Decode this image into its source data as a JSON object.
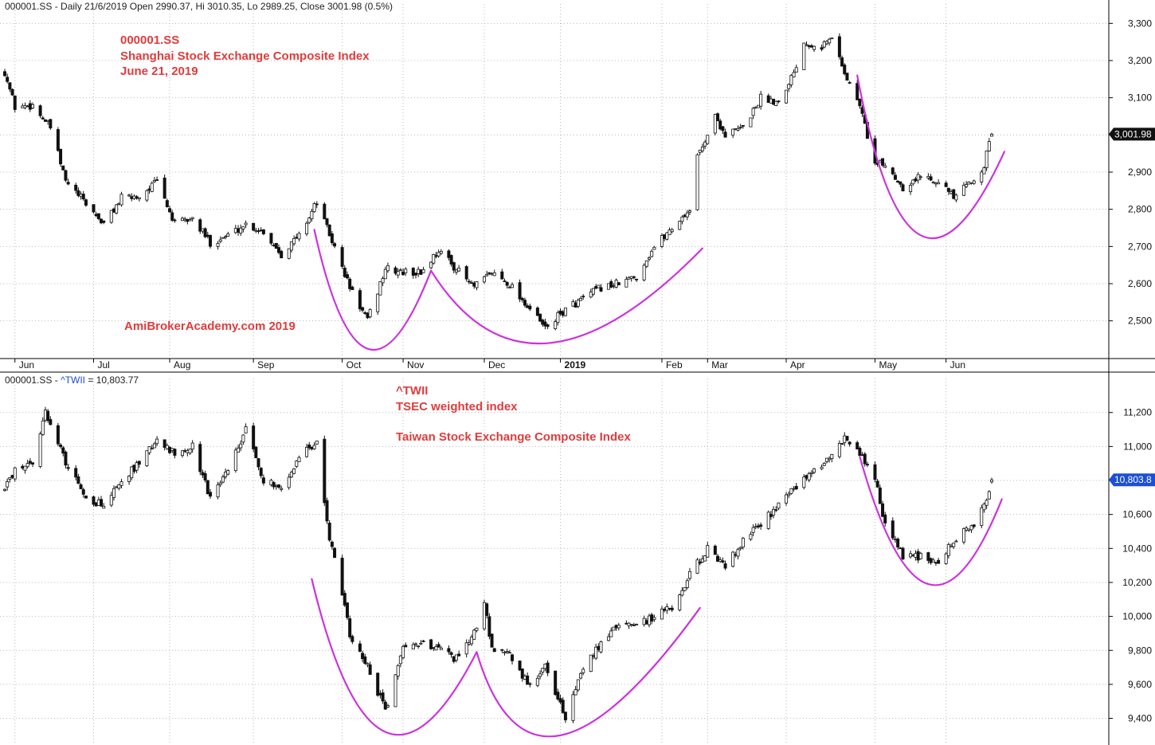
{
  "colors": {
    "annotation": "#e03c3c",
    "arc": "#cc33dd",
    "candle": "#111111",
    "watermark": "#e03c3c",
    "tag_top": "#111111",
    "tag_bottom": "#1a4fd6",
    "series_label_bottom": "#1a4fd6"
  },
  "top_panel": {
    "header": "000001.SS - Daily 21/6/2019 Open 2990.37, Hi 3010.35, Lo 2989.25, Close 3001.98 (0.5%)",
    "annotation_lines": [
      "000001.SS",
      "Shanghai Stock Exchange Composite Index",
      "June 21, 2019"
    ],
    "watermark": "AmiBrokerAcademy.com  2019",
    "last_value_tag": "3,001.98"
  },
  "bottom_panel": {
    "header_prefix": "000001.SS - ",
    "header_series": "^TWII",
    "header_value": " = 10,803.77",
    "annotation_lines": [
      "^TWII",
      "TSEC weighted index",
      "",
      "Taiwan Stock Exchange Composite Index"
    ],
    "last_value_tag": "10,803.8"
  },
  "x_axis_labels": [
    "Jun",
    "Jul",
    "Aug",
    "Sep",
    "Oct",
    "Nov",
    "Dec",
    "2019",
    "Feb",
    "Mar",
    "Apr",
    "May",
    "Jun"
  ],
  "chart_data": [
    {
      "type": "candlestick",
      "name": "000001.SS",
      "period": "2018-05 to 2019-06-21 (daily)",
      "ylim": [
        2420,
        3320
      ],
      "yticks": [
        2500,
        2600,
        2700,
        2800,
        2900,
        3000,
        3100,
        3200,
        3300
      ],
      "ytick_labels": [
        "2,500",
        "2,600",
        "2,700",
        "2,800",
        "2,900",
        "3,000",
        "3,100",
        "3,200",
        "3,300"
      ],
      "last_close": 3001.98,
      "close_anchors": [
        {
          "x": "2018-05-28",
          "y": 3170
        },
        {
          "x": "2018-06-01",
          "y": 3075
        },
        {
          "x": "2018-06-08",
          "y": 3080
        },
        {
          "x": "2018-06-15",
          "y": 3020
        },
        {
          "x": "2018-06-21",
          "y": 2875
        },
        {
          "x": "2018-06-29",
          "y": 2815
        },
        {
          "x": "2018-07-06",
          "y": 2760
        },
        {
          "x": "2018-07-13",
          "y": 2830
        },
        {
          "x": "2018-07-20",
          "y": 2835
        },
        {
          "x": "2018-07-27",
          "y": 2875
        },
        {
          "x": "2018-08-03",
          "y": 2760
        },
        {
          "x": "2018-08-10",
          "y": 2775
        },
        {
          "x": "2018-08-17",
          "y": 2710
        },
        {
          "x": "2018-08-24",
          "y": 2730
        },
        {
          "x": "2018-08-31",
          "y": 2760
        },
        {
          "x": "2018-09-07",
          "y": 2740
        },
        {
          "x": "2018-09-14",
          "y": 2680
        },
        {
          "x": "2018-09-21",
          "y": 2730
        },
        {
          "x": "2018-09-28",
          "y": 2820
        },
        {
          "x": "2018-10-11",
          "y": 2590
        },
        {
          "x": "2018-10-18",
          "y": 2500
        },
        {
          "x": "2018-10-25",
          "y": 2640
        },
        {
          "x": "2018-11-01",
          "y": 2630
        },
        {
          "x": "2018-11-08",
          "y": 2630
        },
        {
          "x": "2018-11-15",
          "y": 2690
        },
        {
          "x": "2018-11-22",
          "y": 2640
        },
        {
          "x": "2018-11-29",
          "y": 2590
        },
        {
          "x": "2018-12-06",
          "y": 2630
        },
        {
          "x": "2018-12-13",
          "y": 2600
        },
        {
          "x": "2018-12-20",
          "y": 2540
        },
        {
          "x": "2018-12-27",
          "y": 2480
        },
        {
          "x": "2019-01-04",
          "y": 2530
        },
        {
          "x": "2019-01-11",
          "y": 2560
        },
        {
          "x": "2019-01-18",
          "y": 2590
        },
        {
          "x": "2019-01-25",
          "y": 2600
        },
        {
          "x": "2019-02-01",
          "y": 2620
        },
        {
          "x": "2019-02-08",
          "y": 2700
        },
        {
          "x": "2019-02-15",
          "y": 2750
        },
        {
          "x": "2019-02-22",
          "y": 2800
        },
        {
          "x": "2019-02-25",
          "y": 2940
        },
        {
          "x": "2019-03-04",
          "y": 3050
        },
        {
          "x": "2019-03-08",
          "y": 3000
        },
        {
          "x": "2019-03-15",
          "y": 3020
        },
        {
          "x": "2019-03-22",
          "y": 3100
        },
        {
          "x": "2019-03-29",
          "y": 3090
        },
        {
          "x": "2019-04-04",
          "y": 3170
        },
        {
          "x": "2019-04-08",
          "y": 3250
        },
        {
          "x": "2019-04-15",
          "y": 3240
        },
        {
          "x": "2019-04-19",
          "y": 3260
        },
        {
          "x": "2019-04-22",
          "y": 3210
        },
        {
          "x": "2019-04-25",
          "y": 3150
        },
        {
          "x": "2019-04-30",
          "y": 3080
        },
        {
          "x": "2019-05-06",
          "y": 2920
        },
        {
          "x": "2019-05-10",
          "y": 2920
        },
        {
          "x": "2019-05-17",
          "y": 2860
        },
        {
          "x": "2019-05-24",
          "y": 2890
        },
        {
          "x": "2019-05-31",
          "y": 2880
        },
        {
          "x": "2019-06-06",
          "y": 2830
        },
        {
          "x": "2019-06-14",
          "y": 2880
        },
        {
          "x": "2019-06-18",
          "y": 2920
        },
        {
          "x": "2019-06-21",
          "y": 3001.98
        }
      ],
      "arcs": [
        {
          "x": [
            "2018-09-27",
            "2018-10-18",
            "2018-11-12"
          ],
          "y": [
            2745,
            2425,
            2635
          ]
        },
        {
          "x": [
            "2018-11-12",
            "2018-12-28",
            "2019-02-27"
          ],
          "y": [
            2635,
            2440,
            2695
          ]
        },
        {
          "x": [
            "2019-04-29",
            "2019-05-24",
            "2019-06-26"
          ],
          "y": [
            3160,
            2730,
            2955
          ]
        }
      ]
    },
    {
      "type": "candlestick",
      "name": "^TWII",
      "period": "2018-05 to 2019-06-21 (daily)",
      "ylim": [
        9290,
        11330
      ],
      "yticks": [
        9400,
        9600,
        9800,
        10000,
        10200,
        10400,
        10600,
        10800,
        11000,
        11200
      ],
      "ytick_labels": [
        "9,400",
        "9,600",
        "9,800",
        "10,000",
        "10,200",
        "10,400",
        "10,600",
        "10,800",
        "11,000",
        "11,200"
      ],
      "last_close": 10803.77,
      "close_anchors": [
        {
          "x": "2018-05-28",
          "y": 10750
        },
        {
          "x": "2018-06-01",
          "y": 10860
        },
        {
          "x": "2018-06-08",
          "y": 10900
        },
        {
          "x": "2018-06-13",
          "y": 11200
        },
        {
          "x": "2018-06-21",
          "y": 10900
        },
        {
          "x": "2018-06-29",
          "y": 10700
        },
        {
          "x": "2018-07-06",
          "y": 10650
        },
        {
          "x": "2018-07-13",
          "y": 10800
        },
        {
          "x": "2018-07-20",
          "y": 10900
        },
        {
          "x": "2018-07-27",
          "y": 11050
        },
        {
          "x": "2018-08-03",
          "y": 10950
        },
        {
          "x": "2018-08-10",
          "y": 11000
        },
        {
          "x": "2018-08-17",
          "y": 10700
        },
        {
          "x": "2018-08-24",
          "y": 10850
        },
        {
          "x": "2018-08-31",
          "y": 11100
        },
        {
          "x": "2018-09-07",
          "y": 10800
        },
        {
          "x": "2018-09-14",
          "y": 10750
        },
        {
          "x": "2018-09-21",
          "y": 10950
        },
        {
          "x": "2018-09-28",
          "y": 11020
        },
        {
          "x": "2018-10-03",
          "y": 10470
        },
        {
          "x": "2018-10-11",
          "y": 9900
        },
        {
          "x": "2018-10-18",
          "y": 9700
        },
        {
          "x": "2018-10-25",
          "y": 9450
        },
        {
          "x": "2018-11-01",
          "y": 9800
        },
        {
          "x": "2018-11-08",
          "y": 9850
        },
        {
          "x": "2018-11-15",
          "y": 9800
        },
        {
          "x": "2018-11-22",
          "y": 9750
        },
        {
          "x": "2018-11-29",
          "y": 9900
        },
        {
          "x": "2018-12-03",
          "y": 10080
        },
        {
          "x": "2018-12-06",
          "y": 9800
        },
        {
          "x": "2018-12-13",
          "y": 9780
        },
        {
          "x": "2018-12-20",
          "y": 9600
        },
        {
          "x": "2018-12-27",
          "y": 9700
        },
        {
          "x": "2019-01-04",
          "y": 9400
        },
        {
          "x": "2019-01-11",
          "y": 9700
        },
        {
          "x": "2019-01-18",
          "y": 9850
        },
        {
          "x": "2019-01-25",
          "y": 9950
        },
        {
          "x": "2019-02-01",
          "y": 9950
        },
        {
          "x": "2019-02-15",
          "y": 10050
        },
        {
          "x": "2019-02-22",
          "y": 10250
        },
        {
          "x": "2019-03-01",
          "y": 10400
        },
        {
          "x": "2019-03-08",
          "y": 10300
        },
        {
          "x": "2019-03-15",
          "y": 10450
        },
        {
          "x": "2019-03-22",
          "y": 10550
        },
        {
          "x": "2019-03-29",
          "y": 10650
        },
        {
          "x": "2019-04-04",
          "y": 10750
        },
        {
          "x": "2019-04-12",
          "y": 10850
        },
        {
          "x": "2019-04-18",
          "y": 10950
        },
        {
          "x": "2019-04-24",
          "y": 11050
        },
        {
          "x": "2019-04-30",
          "y": 10950
        },
        {
          "x": "2019-05-06",
          "y": 10800
        },
        {
          "x": "2019-05-10",
          "y": 10550
        },
        {
          "x": "2019-05-17",
          "y": 10350
        },
        {
          "x": "2019-05-24",
          "y": 10350
        },
        {
          "x": "2019-05-31",
          "y": 10300
        },
        {
          "x": "2019-06-06",
          "y": 10450
        },
        {
          "x": "2019-06-14",
          "y": 10550
        },
        {
          "x": "2019-06-18",
          "y": 10650
        },
        {
          "x": "2019-06-21",
          "y": 10803.77
        }
      ],
      "arcs": [
        {
          "x": [
            "2018-09-26",
            "2018-10-25",
            "2018-11-30"
          ],
          "y": [
            10220,
            9320,
            9790
          ]
        },
        {
          "x": [
            "2018-11-30",
            "2019-01-02",
            "2019-02-26"
          ],
          "y": [
            9790,
            9300,
            10050
          ]
        },
        {
          "x": [
            "2019-04-30",
            "2019-05-27",
            "2019-06-25"
          ],
          "y": [
            10940,
            10190,
            10690
          ]
        }
      ]
    }
  ]
}
